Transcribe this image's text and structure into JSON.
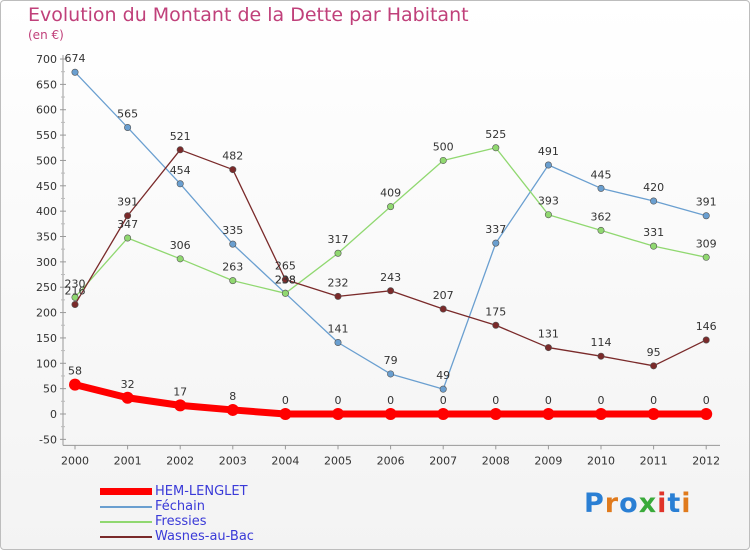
{
  "chart_data": {
    "type": "line",
    "title": "Evolution du Montant de la Dette par Habitant",
    "subtitle": "(en €)",
    "x": [
      "2000",
      "2001",
      "2002",
      "2003",
      "2004",
      "2005",
      "2006",
      "2007",
      "2008",
      "2009",
      "2010",
      "2011",
      "2012"
    ],
    "ylim": [
      -50,
      700
    ],
    "yticks": [
      -50,
      0,
      50,
      100,
      150,
      200,
      250,
      300,
      350,
      400,
      450,
      500,
      550,
      600,
      650,
      700
    ],
    "grid": false,
    "legend": "bottom-left",
    "series": [
      {
        "name": "HEM-LENGLET",
        "color": "#ff0000",
        "values": [
          58,
          32,
          17,
          8,
          0,
          0,
          0,
          0,
          0,
          0,
          0,
          0,
          0
        ]
      },
      {
        "name": "Féchain",
        "color": "#6a9fd0",
        "values": [
          674,
          565,
          454,
          335,
          238,
          141,
          79,
          49,
          337,
          491,
          445,
          420,
          391
        ]
      },
      {
        "name": "Fressies",
        "color": "#90d870",
        "values": [
          230,
          347,
          306,
          263,
          238,
          317,
          409,
          500,
          525,
          393,
          362,
          331,
          309
        ]
      },
      {
        "name": "Wasnes-au-Bac",
        "color": "#7a2a2a",
        "values": [
          216,
          391,
          521,
          482,
          265,
          232,
          243,
          207,
          175,
          131,
          114,
          95,
          146
        ]
      }
    ]
  },
  "legend_colors": {
    "HEM-LENGLET": "#ff0000",
    "Féchain": "#6a9fd0",
    "Fressies": "#90d870",
    "Wasnes-au-Bac": "#7a2a2a"
  },
  "logo": {
    "text": "Proxiti",
    "letters": [
      "P",
      "r",
      "o",
      "x",
      "i",
      "t",
      "i"
    ],
    "colors": [
      "#2a7fd4",
      "#e07a1c",
      "#2a7fd4",
      "#3aaa3a",
      "#e0342a",
      "#2a7fd4",
      "#e07a1c"
    ]
  }
}
